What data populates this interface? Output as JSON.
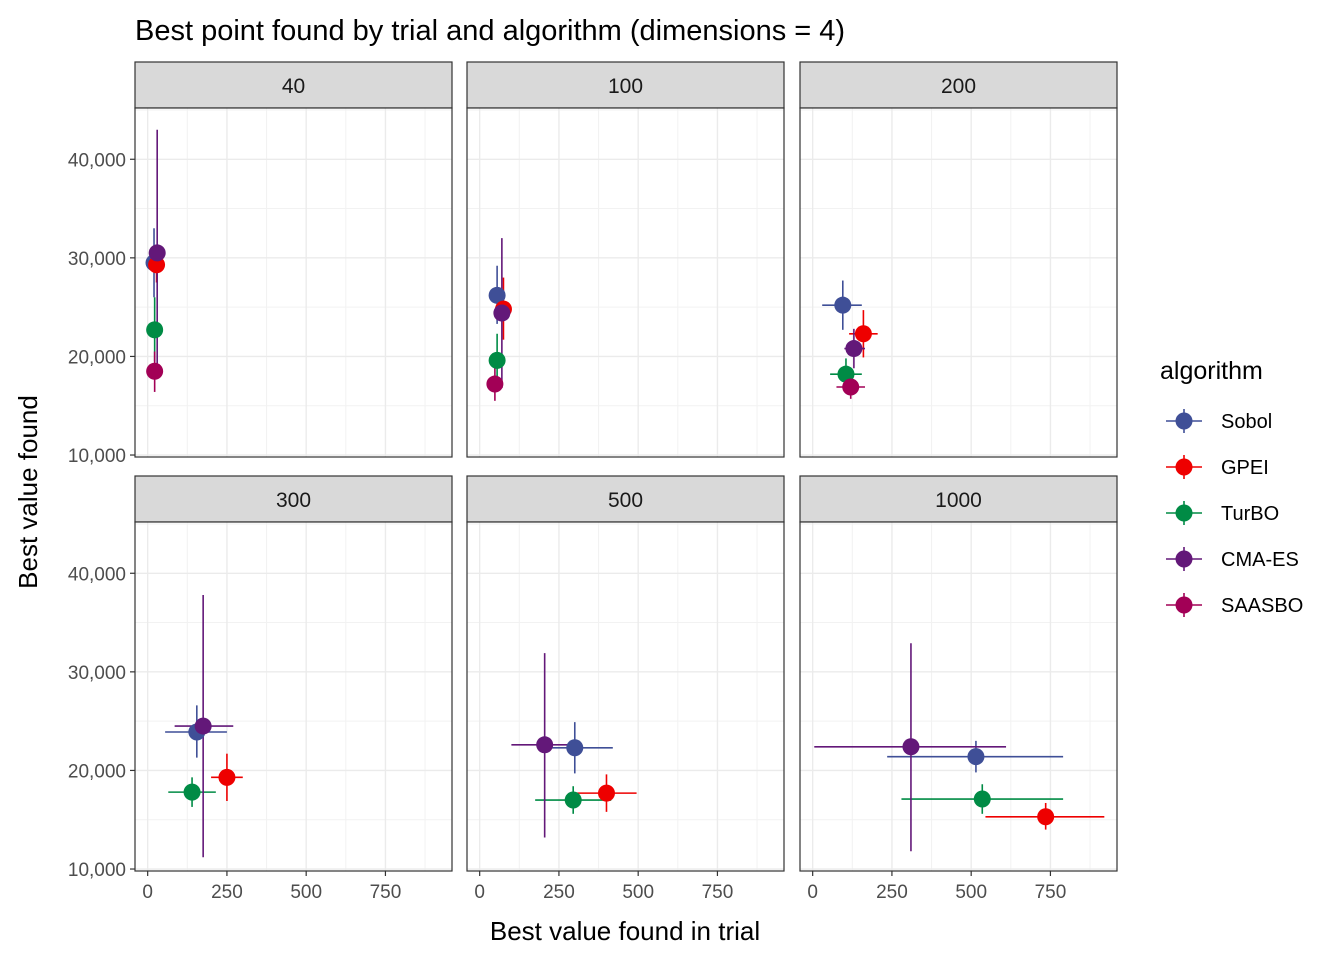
{
  "chart_data": {
    "type": "scatter",
    "title": "Best point found by trial and algorithm (dimensions = 4)",
    "xlabel": "Best value found in trial",
    "ylabel": "Best value found",
    "xlim": [
      -40,
      960
    ],
    "ylim": [
      9800,
      45200
    ],
    "x_ticks": [
      0,
      250,
      500,
      750
    ],
    "x_tick_labels": [
      "0",
      "250",
      "500",
      "750"
    ],
    "y_ticks": [
      10000,
      20000,
      30000,
      40000
    ],
    "y_tick_labels": [
      "10,000",
      "20,000",
      "30,000",
      "40,000"
    ],
    "grid": true,
    "legend": {
      "title": "algorithm",
      "position": "right",
      "entries": [
        "Sobol",
        "GPEI",
        "TurBO",
        "CMA-ES",
        "SAASBO"
      ]
    },
    "series_colors": {
      "Sobol": "#3F4F97",
      "GPEI": "#EE0000",
      "TurBO": "#008B45",
      "CMA-ES": "#631879",
      "SAASBO": "#A20056"
    },
    "panels": [
      {
        "label": "40",
        "points": [
          {
            "series": "Sobol",
            "x": 20,
            "y": 29500,
            "x_lo": 10,
            "x_hi": 30,
            "y_lo": 26000,
            "y_hi": 33000
          },
          {
            "series": "GPEI",
            "x": 28,
            "y": 29300,
            "x_lo": 20,
            "x_hi": 36,
            "y_lo": 27500,
            "y_hi": 31000
          },
          {
            "series": "TurBO",
            "x": 22,
            "y": 22700,
            "x_lo": 15,
            "x_hi": 30,
            "y_lo": 19500,
            "y_hi": 26000
          },
          {
            "series": "CMA-ES",
            "x": 30,
            "y": 30500,
            "x_lo": 20,
            "x_hi": 42,
            "y_lo": 18000,
            "y_hi": 43000
          },
          {
            "series": "SAASBO",
            "x": 22,
            "y": 18500,
            "x_lo": 15,
            "x_hi": 30,
            "y_lo": 16400,
            "y_hi": 20500
          }
        ]
      },
      {
        "label": "100",
        "points": [
          {
            "series": "Sobol",
            "x": 55,
            "y": 26200,
            "x_lo": 45,
            "x_hi": 68,
            "y_lo": 23300,
            "y_hi": 29200
          },
          {
            "series": "GPEI",
            "x": 75,
            "y": 24800,
            "x_lo": 60,
            "x_hi": 90,
            "y_lo": 21700,
            "y_hi": 28000
          },
          {
            "series": "TurBO",
            "x": 55,
            "y": 19600,
            "x_lo": 45,
            "x_hi": 65,
            "y_lo": 17000,
            "y_hi": 22300
          },
          {
            "series": "CMA-ES",
            "x": 70,
            "y": 24400,
            "x_lo": 55,
            "x_hi": 85,
            "y_lo": 16800,
            "y_hi": 32000
          },
          {
            "series": "SAASBO",
            "x": 48,
            "y": 17200,
            "x_lo": 38,
            "x_hi": 58,
            "y_lo": 15500,
            "y_hi": 19000
          }
        ]
      },
      {
        "label": "200",
        "points": [
          {
            "series": "Sobol",
            "x": 95,
            "y": 25200,
            "x_lo": 30,
            "x_hi": 155,
            "y_lo": 22700,
            "y_hi": 27700
          },
          {
            "series": "GPEI",
            "x": 160,
            "y": 22300,
            "x_lo": 115,
            "x_hi": 205,
            "y_lo": 19900,
            "y_hi": 24700
          },
          {
            "series": "TurBO",
            "x": 105,
            "y": 18200,
            "x_lo": 55,
            "x_hi": 155,
            "y_lo": 16700,
            "y_hi": 19800
          },
          {
            "series": "CMA-ES",
            "x": 130,
            "y": 20800,
            "x_lo": 100,
            "x_hi": 165,
            "y_lo": 18800,
            "y_hi": 22800
          },
          {
            "series": "SAASBO",
            "x": 120,
            "y": 16900,
            "x_lo": 75,
            "x_hi": 165,
            "y_lo": 15700,
            "y_hi": 18000
          }
        ]
      },
      {
        "label": "300",
        "points": [
          {
            "series": "Sobol",
            "x": 155,
            "y": 23900,
            "x_lo": 55,
            "x_hi": 250,
            "y_lo": 21300,
            "y_hi": 26600
          },
          {
            "series": "GPEI",
            "x": 250,
            "y": 19300,
            "x_lo": 200,
            "x_hi": 300,
            "y_lo": 16900,
            "y_hi": 21700
          },
          {
            "series": "TurBO",
            "x": 140,
            "y": 17800,
            "x_lo": 65,
            "x_hi": 215,
            "y_lo": 16300,
            "y_hi": 19300
          },
          {
            "series": "CMA-ES",
            "x": 175,
            "y": 24500,
            "x_lo": 85,
            "x_hi": 270,
            "y_lo": 11200,
            "y_hi": 37800
          }
        ]
      },
      {
        "label": "500",
        "points": [
          {
            "series": "Sobol",
            "x": 300,
            "y": 22300,
            "x_lo": 200,
            "x_hi": 420,
            "y_lo": 19700,
            "y_hi": 24900
          },
          {
            "series": "GPEI",
            "x": 400,
            "y": 17700,
            "x_lo": 300,
            "x_hi": 495,
            "y_lo": 15800,
            "y_hi": 19600
          },
          {
            "series": "TurBO",
            "x": 295,
            "y": 17000,
            "x_lo": 175,
            "x_hi": 415,
            "y_lo": 15600,
            "y_hi": 18400
          },
          {
            "series": "CMA-ES",
            "x": 205,
            "y": 22600,
            "x_lo": 100,
            "x_hi": 310,
            "y_lo": 13200,
            "y_hi": 31900
          }
        ]
      },
      {
        "label": "1000",
        "points": [
          {
            "series": "Sobol",
            "x": 515,
            "y": 21400,
            "x_lo": 235,
            "x_hi": 790,
            "y_lo": 19800,
            "y_hi": 23000
          },
          {
            "series": "GPEI",
            "x": 735,
            "y": 15300,
            "x_lo": 545,
            "x_hi": 920,
            "y_lo": 14000,
            "y_hi": 16700
          },
          {
            "series": "TurBO",
            "x": 535,
            "y": 17100,
            "x_lo": 280,
            "x_hi": 790,
            "y_lo": 15600,
            "y_hi": 18600
          },
          {
            "series": "CMA-ES",
            "x": 310,
            "y": 22400,
            "x_lo": 5,
            "x_hi": 610,
            "y_lo": 11800,
            "y_hi": 32900
          }
        ]
      }
    ]
  }
}
